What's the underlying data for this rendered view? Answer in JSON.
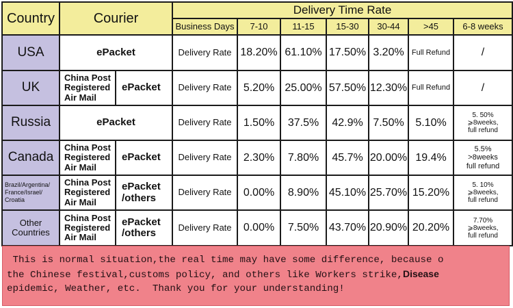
{
  "header": {
    "country": "Country",
    "courier": "Courier",
    "delivery_time_rate": "Delivery Time Rate",
    "business_days": "Business Days",
    "ranges": [
      "7-10",
      "11-15",
      "15-30",
      "30-44",
      ">45",
      "6-8 weeks"
    ]
  },
  "rows": [
    {
      "country": "USA",
      "courier": "ePacket",
      "label": "Delivery Rate",
      "values": [
        "18.20%",
        "61.10%",
        "17.50%",
        "3.20%",
        "Full Refund",
        "/"
      ]
    },
    {
      "country": "UK",
      "courier_left": [
        "China Post",
        "Registered",
        "Air Mail"
      ],
      "courier_right": [
        "ePacket"
      ],
      "label": "Delivery Rate",
      "values": [
        "5.20%",
        "25.00%",
        "57.50%",
        "12.30%",
        "Full Refund",
        "/"
      ]
    },
    {
      "country": "Russia",
      "courier": "ePacket",
      "label": "Delivery Rate",
      "values": [
        "1.50%",
        "37.5%",
        "42.9%",
        "7.50%",
        "5.10%"
      ],
      "last": [
        "5. 50%",
        "⩾8weeks,",
        "full refund"
      ]
    },
    {
      "country": "Canada",
      "courier_left": [
        "China Post",
        "Registered",
        "Air Mail"
      ],
      "courier_right": [
        "ePacket"
      ],
      "label": "Delivery Rate",
      "values": [
        "2.30%",
        "7.80%",
        "45.7%",
        "20.00%",
        "19.4%"
      ],
      "last": [
        "5.5%",
        ">8weeks",
        "full refund"
      ]
    },
    {
      "country": [
        "Brazil/Argentina/",
        "France/Israel/",
        "Croatia"
      ],
      "courier_left": [
        "China Post",
        "Registered",
        "Air Mail"
      ],
      "courier_right": [
        "ePacket",
        "/others"
      ],
      "label": "Delivery Rate",
      "values": [
        "0.00%",
        "8.90%",
        "45.10%",
        "25.70%",
        "15.20%"
      ],
      "last": [
        "5. 10%",
        "⩾8weeks,",
        "full refund"
      ]
    },
    {
      "country": "Other Countries",
      "courier_left": [
        "China Post",
        "Registered",
        "Air Mail"
      ],
      "courier_right": [
        "ePacket",
        "/others"
      ],
      "label": "Delivery Rate",
      "values": [
        "0.00%",
        "7.50%",
        "43.70%",
        "20.90%",
        "20.20%"
      ],
      "last": [
        "7.70%",
        "⩾8weeks,",
        "full refund"
      ]
    }
  ],
  "note": {
    "line1": " This is normal situation,the real time may have some difference, because o",
    "line2_a": "the Chinese festival,customs policy, and others like Workers strike,",
    "line2_b": "Disease",
    "line3": "epidemic, Weather, etc.  Thank you for your understanding!"
  },
  "colors": {
    "header_bg": "#f3ed9c",
    "country_bg": "#c5c0e0",
    "note_bg": "#f0828a"
  }
}
